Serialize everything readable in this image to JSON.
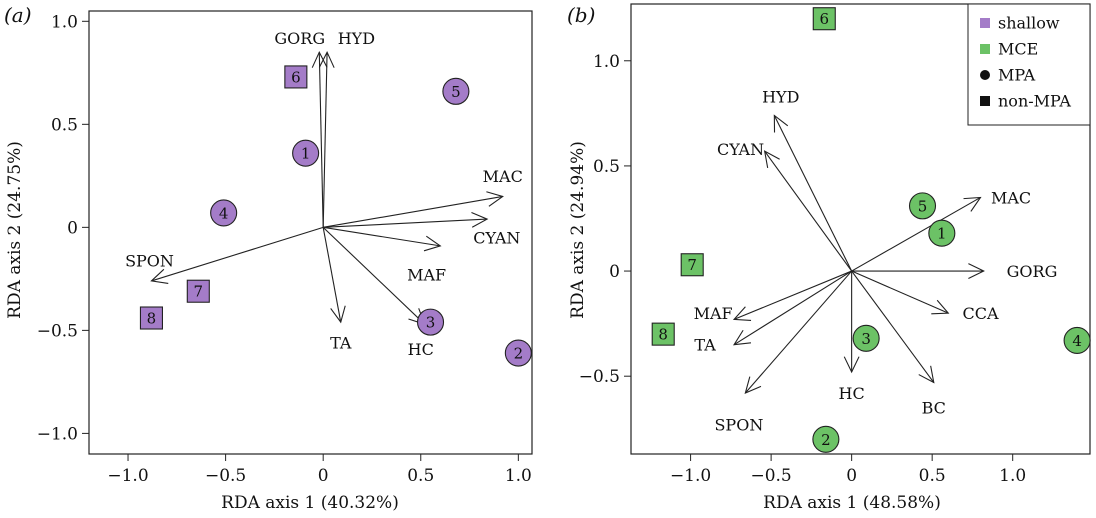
{
  "chart_data": [
    {
      "type": "scatter",
      "panel_label": "(a)",
      "xlabel": "RDA axis 1 (40.32%)",
      "ylabel": "RDA axis 2 (24.75%)",
      "xlim": [
        -1.2,
        1.07
      ],
      "ylim": [
        -1.1,
        1.05
      ],
      "x_ticks": [
        -1.0,
        -0.5,
        0,
        0.5,
        1.0
      ],
      "x_tick_labels": [
        "−1.0",
        "−0.5",
        "0",
        "0.5",
        "1.0"
      ],
      "y_ticks": [
        -1.0,
        -0.5,
        0,
        0.5,
        1.0
      ],
      "y_tick_labels": [
        "−1.0",
        "−0.5",
        "0",
        "0.5",
        "1.0"
      ],
      "depth_color": "#a47cc8",
      "sites": [
        {
          "label": "1",
          "x": -0.09,
          "y": 0.36,
          "shape": "circle"
        },
        {
          "label": "2",
          "x": 1.0,
          "y": -0.61,
          "shape": "circle"
        },
        {
          "label": "3",
          "x": 0.55,
          "y": -0.46,
          "shape": "circle"
        },
        {
          "label": "4",
          "x": -0.51,
          "y": 0.07,
          "shape": "circle"
        },
        {
          "label": "5",
          "x": 0.68,
          "y": 0.66,
          "shape": "circle"
        },
        {
          "label": "6",
          "x": -0.14,
          "y": 0.73,
          "shape": "square"
        },
        {
          "label": "7",
          "x": -0.64,
          "y": -0.31,
          "shape": "square"
        },
        {
          "label": "8",
          "x": -0.88,
          "y": -0.44,
          "shape": "square"
        }
      ],
      "vectors": [
        {
          "label": "GORG",
          "x": -0.02,
          "y": 0.85,
          "label_dx": -0.1,
          "label_dy": 0.07
        },
        {
          "label": "HYD",
          "x": 0.02,
          "y": 0.85,
          "label_dx": 0.15,
          "label_dy": 0.07
        },
        {
          "label": "MAC",
          "x": 0.92,
          "y": 0.15,
          "label_dx": 0.0,
          "label_dy": 0.1
        },
        {
          "label": "CYAN",
          "x": 0.84,
          "y": 0.04,
          "label_dx": 0.05,
          "label_dy": -0.09
        },
        {
          "label": "MAF",
          "x": 0.6,
          "y": -0.09,
          "label_dx": -0.07,
          "label_dy": -0.14
        },
        {
          "label": "SPON",
          "x": -0.88,
          "y": -0.26,
          "label_dx": -0.01,
          "label_dy": 0.1
        },
        {
          "label": "TA",
          "x": 0.09,
          "y": -0.46,
          "label_dx": 0.0,
          "label_dy": -0.1
        },
        {
          "label": "HC",
          "x": 0.52,
          "y": -0.47,
          "label_dx": -0.02,
          "label_dy": -0.12
        }
      ]
    },
    {
      "type": "scatter",
      "panel_label": "(b)",
      "xlabel": "RDA axis 1 (48.58%)",
      "ylabel": "RDA axis 2 (24.94%)",
      "xlim": [
        -1.37,
        1.48
      ],
      "ylim": [
        -0.87,
        1.27
      ],
      "x_ticks": [
        -1.0,
        -0.5,
        0,
        0.5,
        1.0
      ],
      "x_tick_labels": [
        "−1.0",
        "−0.5",
        "0",
        "0.5",
        "1.0"
      ],
      "y_ticks": [
        -0.5,
        0,
        0.5,
        1.0
      ],
      "y_tick_labels": [
        "−0.5",
        "0",
        "0.5",
        "1.0"
      ],
      "depth_color": "#6cc266",
      "sites": [
        {
          "label": "1",
          "x": 0.56,
          "y": 0.18,
          "shape": "circle"
        },
        {
          "label": "2",
          "x": -0.16,
          "y": -0.8,
          "shape": "circle"
        },
        {
          "label": "3",
          "x": 0.09,
          "y": -0.32,
          "shape": "circle"
        },
        {
          "label": "4",
          "x": 1.4,
          "y": -0.33,
          "shape": "circle"
        },
        {
          "label": "5",
          "x": 0.44,
          "y": 0.31,
          "shape": "circle"
        },
        {
          "label": "6",
          "x": -0.17,
          "y": 1.2,
          "shape": "square"
        },
        {
          "label": "7",
          "x": -0.99,
          "y": 0.03,
          "shape": "square"
        },
        {
          "label": "8",
          "x": -1.17,
          "y": -0.3,
          "shape": "square"
        }
      ],
      "vectors": [
        {
          "label": "HYD",
          "x": -0.48,
          "y": 0.74,
          "label_dx": 0.04,
          "label_dy": 0.09
        },
        {
          "label": "CYAN",
          "x": -0.54,
          "y": 0.57,
          "label_dx": -0.15,
          "label_dy": 0.01
        },
        {
          "label": "MAC",
          "x": 0.8,
          "y": 0.35,
          "label_dx": 0.19,
          "label_dy": 0.0
        },
        {
          "label": "GORG",
          "x": 0.82,
          "y": 0.0,
          "label_dx": 0.3,
          "label_dy": 0.0
        },
        {
          "label": "CCA",
          "x": 0.6,
          "y": -0.2,
          "label_dx": 0.2,
          "label_dy": 0.0
        },
        {
          "label": "BC",
          "x": 0.51,
          "y": -0.53,
          "label_dx": 0.0,
          "label_dy": -0.12
        },
        {
          "label": "HC",
          "x": 0.0,
          "y": -0.48,
          "label_dx": 0.0,
          "label_dy": -0.1
        },
        {
          "label": "MAF",
          "x": -0.73,
          "y": -0.23,
          "label_dx": -0.13,
          "label_dy": 0.03
        },
        {
          "label": "TA",
          "x": -0.73,
          "y": -0.35,
          "label_dx": -0.18,
          "label_dy": 0.0
        },
        {
          "label": "SPON",
          "x": -0.66,
          "y": -0.58,
          "label_dx": -0.04,
          "label_dy": -0.15
        }
      ]
    }
  ],
  "legend": {
    "placement": "top-right of panel (b)",
    "items": [
      {
        "label": "shallow",
        "marker": "square",
        "color": "#a47cc8"
      },
      {
        "label": "MCE",
        "marker": "square",
        "color": "#6cc266"
      },
      {
        "label": "MPA",
        "marker": "circle",
        "color": "#111111"
      },
      {
        "label": "non-MPA",
        "marker": "square",
        "color": "#111111"
      }
    ]
  }
}
